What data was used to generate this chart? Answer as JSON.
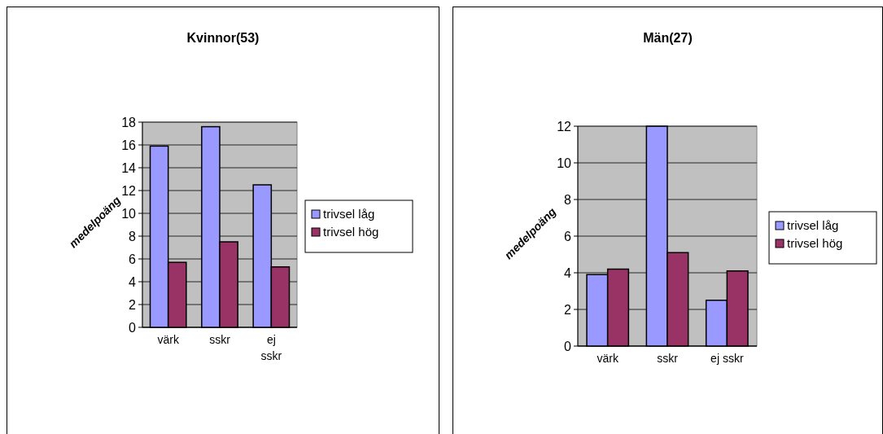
{
  "chart_data": [
    {
      "type": "bar",
      "title": "Kvinnor(53)",
      "ylabel": "medelpoäng",
      "categories": [
        "värk",
        "sskr",
        "ej sskr"
      ],
      "series": [
        {
          "name": "trivsel låg",
          "color": "#9999ff",
          "values": [
            15.9,
            17.6,
            12.5
          ]
        },
        {
          "name": "trivsel hög",
          "color": "#993366",
          "values": [
            5.7,
            7.5,
            5.3
          ]
        }
      ],
      "ylim": [
        0,
        18
      ],
      "yticks": [
        0,
        2,
        4,
        6,
        8,
        10,
        12,
        14,
        16,
        18
      ],
      "grid": "y",
      "legend": "right"
    },
    {
      "type": "bar",
      "title": "Män(27)",
      "ylabel": "medelpoäng",
      "categories": [
        "värk",
        "sskr",
        "ej sskr"
      ],
      "series": [
        {
          "name": "trivsel låg",
          "color": "#9999ff",
          "values": [
            3.9,
            12,
            2.5
          ]
        },
        {
          "name": "trivsel hög",
          "color": "#993366",
          "values": [
            4.2,
            5.1,
            4.1
          ]
        }
      ],
      "ylim": [
        0,
        12
      ],
      "yticks": [
        0,
        2,
        4,
        6,
        8,
        10,
        12
      ],
      "grid": "y",
      "legend": "right"
    }
  ]
}
